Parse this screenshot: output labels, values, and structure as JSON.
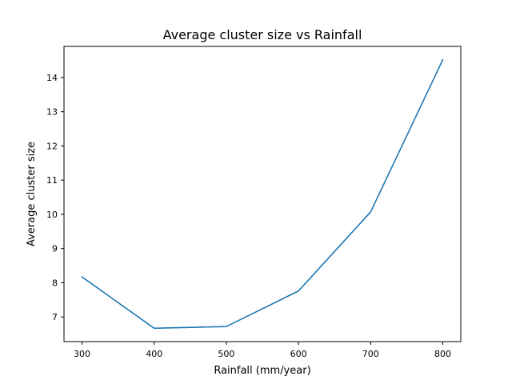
{
  "chart_data": {
    "type": "line",
    "title": "Average cluster size vs Rainfall",
    "xlabel": "Rainfall (mm/year)",
    "ylabel": "Average cluster size",
    "x": [
      300,
      400,
      500,
      600,
      700,
      800
    ],
    "series": [
      {
        "values": [
          8.17,
          6.67,
          6.72,
          7.76,
          10.07,
          14.52
        ],
        "color": "#1f77b4"
      }
    ],
    "xticks": [
      300,
      400,
      500,
      600,
      700,
      800
    ],
    "yticks": [
      7,
      8,
      9,
      10,
      11,
      12,
      13,
      14
    ],
    "xlim": [
      275,
      825
    ],
    "ylim": [
      6.28,
      14.91
    ],
    "grid": false,
    "legend": "none"
  }
}
